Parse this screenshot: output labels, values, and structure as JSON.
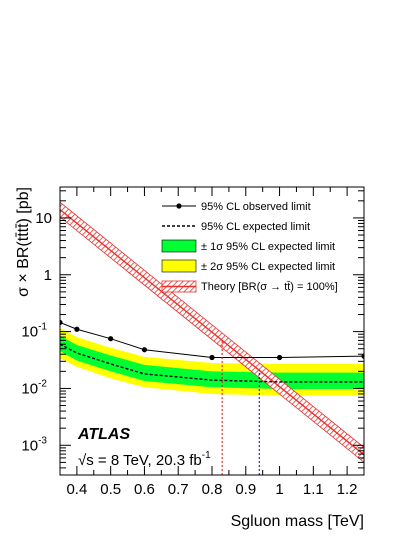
{
  "chart_data": {
    "type": "line",
    "xlabel": "Sgluon mass [TeV]",
    "ylabel": "σ × BR(tt̄tt̄) [pb]",
    "xlim": [
      0.35,
      1.25
    ],
    "ylim": [
      0.0003,
      35
    ],
    "yscale": "log",
    "grid": false,
    "legend_position": "top-right",
    "x_ticks": [
      "0.4",
      "0.5",
      "0.6",
      "0.7",
      "0.8",
      "0.9",
      "1",
      "1.1",
      "1.2"
    ],
    "y_ticks": [
      {
        "mant": "10",
        "exp": "-3"
      },
      {
        "mant": "10",
        "exp": "-2"
      },
      {
        "mant": "10",
        "exp": "-1"
      },
      {
        "mant": "1",
        "exp": ""
      },
      {
        "mant": "10",
        "exp": ""
      }
    ],
    "legend": {
      "observed": "95% CL observed limit",
      "expected": "95% CL expected limit",
      "band1": "± 1σ 95% CL expected limit",
      "band2": "± 2σ 95% CL expected limit",
      "theory": "Theory [BR(σ → tt̄) = 100%]"
    },
    "observed": {
      "x": [
        0.35,
        0.4,
        0.5,
        0.6,
        0.8,
        1.0,
        1.25
      ],
      "y": [
        0.145,
        0.11,
        0.075,
        0.048,
        0.035,
        0.035,
        0.037
      ]
    },
    "expected": {
      "x": [
        0.35,
        0.4,
        0.5,
        0.6,
        0.8,
        1.0,
        1.25
      ],
      "y": [
        0.06,
        0.042,
        0.027,
        0.018,
        0.014,
        0.013,
        0.013
      ]
    },
    "band1": {
      "x": [
        0.35,
        0.4,
        0.5,
        0.6,
        0.8,
        1.0,
        1.25
      ],
      "lower": [
        0.045,
        0.031,
        0.02,
        0.0135,
        0.0105,
        0.0098,
        0.0098
      ],
      "upper": [
        0.085,
        0.058,
        0.038,
        0.026,
        0.02,
        0.019,
        0.019
      ]
    },
    "band2": {
      "x": [
        0.35,
        0.4,
        0.5,
        0.6,
        0.8,
        1.0,
        1.25
      ],
      "lower": [
        0.034,
        0.024,
        0.015,
        0.0105,
        0.008,
        0.0075,
        0.0075
      ],
      "upper": [
        0.115,
        0.08,
        0.052,
        0.036,
        0.028,
        0.027,
        0.027
      ]
    },
    "theory": {
      "x": [
        0.35,
        1.25
      ],
      "y": [
        14,
        0.00068
      ]
    },
    "observed_limit_mass": 0.83,
    "expected_limit_mass": 0.94,
    "colors": {
      "band1": "#00ff33",
      "band2": "#ffff00",
      "theory": "#e8302c",
      "observed_limit_line": "#ff0000",
      "expected_limit_line": "#0000cc"
    },
    "annotations": {
      "experiment": "ATLAS",
      "energy_prefix": "√s = 8 TeV, 20.3 fb",
      "energy_exp": "-1"
    }
  }
}
